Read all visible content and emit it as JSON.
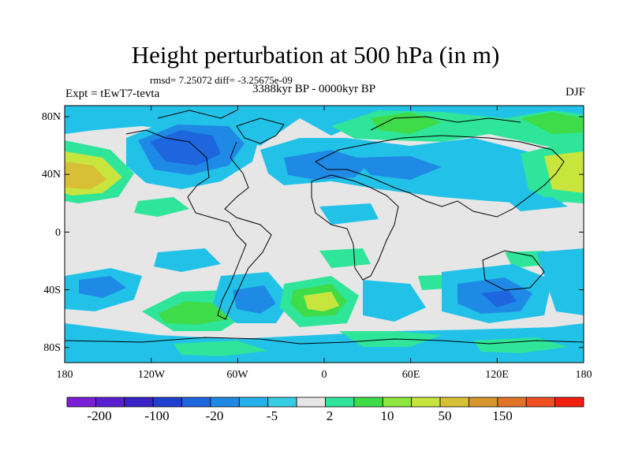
{
  "figure": {
    "title": "Height perturbation at 500 hPa (in m)",
    "stats": "rmsd= 7.25072 diff= -3.25675e-09",
    "experiment": "Expt = tEwT7-tevta",
    "period": "3388kyr BP - 0000kyr BP",
    "season": "DJF"
  },
  "axes": {
    "lat_labels": [
      "80N",
      "40N",
      "0",
      "40S",
      "80S"
    ],
    "lon_labels": [
      "180",
      "120W",
      "60W",
      "0",
      "60E",
      "120E",
      "180"
    ]
  },
  "colorbar": {
    "colors": [
      "#7a1fd6",
      "#5a1fd0",
      "#3a22c8",
      "#1f3fd0",
      "#1e66de",
      "#1f8ae6",
      "#23b0ea",
      "#35cde4",
      "#e6e6e6",
      "#2ee59a",
      "#3fdc4a",
      "#8ee640",
      "#c8e53e",
      "#d8c036",
      "#d8962e",
      "#e27428",
      "#f04f22",
      "#f21e10"
    ],
    "labels": [
      "-200",
      "-100",
      "-20",
      "-5",
      "2",
      "10",
      "50",
      "150"
    ]
  },
  "legend_colors": {
    "neutral": "#e6e6e6",
    "cyan": "#22c2e8",
    "light_blue": "#1f8ae6",
    "blue": "#1e66de",
    "green": "#2ee59a",
    "lime": "#3fdc4a",
    "yellow": "#c8e53e",
    "mustard": "#d8c036"
  }
}
